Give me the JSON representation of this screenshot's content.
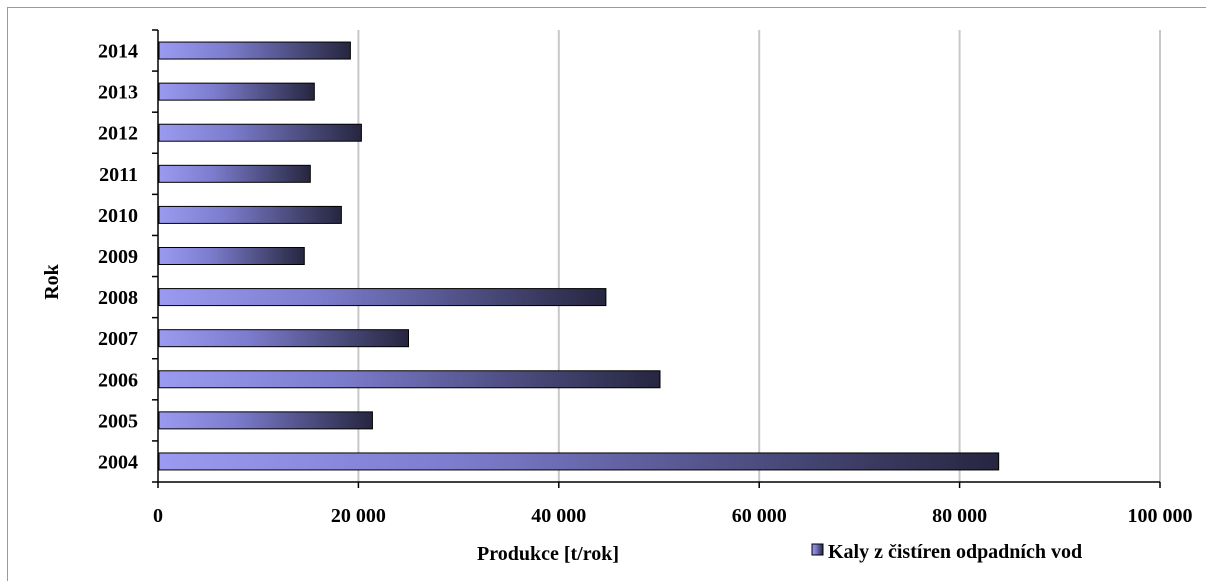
{
  "chart_data": {
    "type": "bar",
    "orientation": "horizontal",
    "categories": [
      "2004",
      "2005",
      "2006",
      "2007",
      "2008",
      "2009",
      "2010",
      "2011",
      "2012",
      "2013",
      "2014"
    ],
    "series": [
      {
        "name": "Kaly z čistíren odpadních vod",
        "values": [
          83800,
          21300,
          50000,
          24900,
          44600,
          14500,
          18200,
          15100,
          20200,
          15500,
          19100
        ]
      }
    ],
    "xlabel": "Produkce [t/rok]",
    "ylabel": "Rok",
    "xlim": [
      0,
      100000
    ],
    "x_ticks": [
      "0",
      "20 000",
      "40 000",
      "60 000",
      "80 000",
      "100 000"
    ],
    "grid": "vertical",
    "legend_position": "bottom-right",
    "colors": {
      "bar_light": "#9a9af0",
      "bar_dark": "#262640",
      "grid": "#c8c8c8"
    }
  }
}
